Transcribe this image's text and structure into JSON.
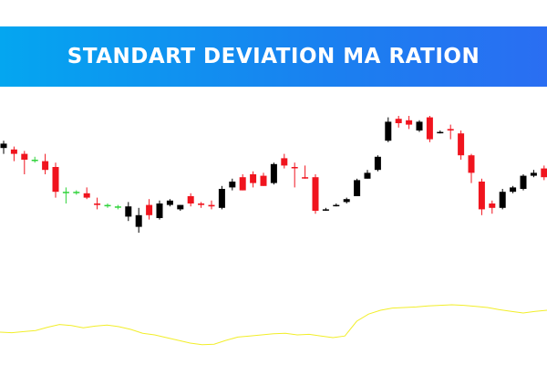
{
  "banner": {
    "title": "STANDART DEVIATION MA RATION"
  },
  "colors": {
    "banner_start": "#04a6f0",
    "banner_end": "#2a6ef2",
    "bull": "#000000",
    "bear": "#f0141e",
    "doji": "#2fd33a",
    "indicator": "#f2ee2a"
  },
  "chart_data": {
    "type": "candlestick",
    "title": "STANDART DEVIATION MA RATION",
    "grid": false,
    "legend": "none",
    "price_range": [
      0,
      100
    ],
    "indicator_range": [
      0,
      100
    ],
    "candles": [
      {
        "o": 61,
        "h": 63,
        "l": 54,
        "c": 58,
        "color": "bull"
      },
      {
        "o": 57,
        "h": 59,
        "l": 49,
        "c": 54,
        "color": "bear"
      },
      {
        "o": 54,
        "h": 56,
        "l": 40,
        "c": 50,
        "color": "bear"
      },
      {
        "o": 50,
        "h": 52,
        "l": 48,
        "c": 50,
        "color": "doji"
      },
      {
        "o": 49,
        "h": 54,
        "l": 40,
        "c": 43,
        "color": "bear"
      },
      {
        "o": 45,
        "h": 48,
        "l": 24,
        "c": 28,
        "color": "bear"
      },
      {
        "o": 28,
        "h": 31,
        "l": 20,
        "c": 28,
        "color": "doji"
      },
      {
        "o": 28,
        "h": 29,
        "l": 26,
        "c": 28,
        "color": "doji"
      },
      {
        "o": 27,
        "h": 31,
        "l": 23,
        "c": 24,
        "color": "bear"
      },
      {
        "o": 20,
        "h": 24,
        "l": 16,
        "c": 19,
        "color": "bear"
      },
      {
        "o": 19,
        "h": 20,
        "l": 17,
        "c": 19,
        "color": "doji"
      },
      {
        "o": 18,
        "h": 19,
        "l": 16,
        "c": 18,
        "color": "doji"
      },
      {
        "o": 11,
        "h": 21,
        "l": 8,
        "c": 18,
        "color": "bull"
      },
      {
        "o": 4,
        "h": 17,
        "l": 0,
        "c": 12,
        "color": "bull"
      },
      {
        "o": 19,
        "h": 23,
        "l": 9,
        "c": 12,
        "color": "bear"
      },
      {
        "o": 10,
        "h": 22,
        "l": 9,
        "c": 20,
        "color": "bull"
      },
      {
        "o": 19,
        "h": 23,
        "l": 18,
        "c": 22,
        "color": "bull"
      },
      {
        "o": 16,
        "h": 19,
        "l": 15,
        "c": 19,
        "color": "bull"
      },
      {
        "o": 25,
        "h": 27,
        "l": 18,
        "c": 20,
        "color": "bear"
      },
      {
        "o": 19,
        "h": 21,
        "l": 17,
        "c": 20,
        "color": "bear"
      },
      {
        "o": 19,
        "h": 22,
        "l": 16,
        "c": 18,
        "color": "bear"
      },
      {
        "o": 17,
        "h": 32,
        "l": 16,
        "c": 30,
        "color": "bull"
      },
      {
        "o": 35,
        "h": 37,
        "l": 29,
        "c": 31,
        "color": "bull"
      },
      {
        "o": 38,
        "h": 40,
        "l": 29,
        "c": 29,
        "color": "bear"
      },
      {
        "o": 40,
        "h": 42,
        "l": 31,
        "c": 34,
        "color": "bear"
      },
      {
        "o": 39,
        "h": 41,
        "l": 32,
        "c": 32,
        "color": "bear"
      },
      {
        "o": 34,
        "h": 48,
        "l": 33,
        "c": 47,
        "color": "bull"
      },
      {
        "o": 51,
        "h": 54,
        "l": 44,
        "c": 46,
        "color": "bear"
      },
      {
        "o": 45,
        "h": 48,
        "l": 31,
        "c": 45,
        "color": "bear"
      },
      {
        "o": 38,
        "h": 46,
        "l": 37,
        "c": 38,
        "color": "bear"
      },
      {
        "o": 38,
        "h": 40,
        "l": 13,
        "c": 15,
        "color": "bear"
      },
      {
        "o": 16,
        "h": 17,
        "l": 15,
        "c": 16,
        "color": "bull"
      },
      {
        "o": 19,
        "h": 20,
        "l": 18,
        "c": 19,
        "color": "bull"
      },
      {
        "o": 21,
        "h": 24,
        "l": 20,
        "c": 23,
        "color": "bull"
      },
      {
        "o": 25,
        "h": 37,
        "l": 25,
        "c": 36,
        "color": "bull"
      },
      {
        "o": 37,
        "h": 43,
        "l": 37,
        "c": 41,
        "color": "bull"
      },
      {
        "o": 43,
        "h": 53,
        "l": 42,
        "c": 52,
        "color": "bull"
      },
      {
        "o": 63,
        "h": 79,
        "l": 62,
        "c": 76,
        "color": "bull"
      },
      {
        "o": 78,
        "h": 80,
        "l": 72,
        "c": 75,
        "color": "bear"
      },
      {
        "o": 77,
        "h": 80,
        "l": 71,
        "c": 74,
        "color": "bear"
      },
      {
        "o": 70,
        "h": 77,
        "l": 69,
        "c": 76,
        "color": "bull"
      },
      {
        "o": 79,
        "h": 80,
        "l": 62,
        "c": 64,
        "color": "bear"
      },
      {
        "o": 69,
        "h": 70,
        "l": 68,
        "c": 69,
        "color": "bull"
      },
      {
        "o": 71,
        "h": 74,
        "l": 64,
        "c": 70,
        "color": "bear"
      },
      {
        "o": 68,
        "h": 70,
        "l": 50,
        "c": 53,
        "color": "bear"
      },
      {
        "o": 53,
        "h": 54,
        "l": 34,
        "c": 41,
        "color": "bear"
      },
      {
        "o": 35,
        "h": 37,
        "l": 12,
        "c": 16,
        "color": "bear"
      },
      {
        "o": 20,
        "h": 22,
        "l": 13,
        "c": 17,
        "color": "bear"
      },
      {
        "o": 17,
        "h": 30,
        "l": 16,
        "c": 28,
        "color": "bull"
      },
      {
        "o": 28,
        "h": 32,
        "l": 27,
        "c": 31,
        "color": "bull"
      },
      {
        "o": 30,
        "h": 40,
        "l": 29,
        "c": 39,
        "color": "bull"
      },
      {
        "o": 39,
        "h": 43,
        "l": 38,
        "c": 41,
        "color": "bull"
      },
      {
        "o": 44,
        "h": 46,
        "l": 36,
        "c": 38,
        "color": "bear"
      }
    ],
    "indicator": [
      35,
      34,
      36,
      38,
      44,
      49,
      47,
      43,
      46,
      48,
      45,
      40,
      33,
      30,
      25,
      20,
      15,
      12,
      13,
      20,
      26,
      28,
      30,
      32,
      33,
      30,
      31,
      28,
      25,
      28,
      55,
      68,
      75,
      79,
      80,
      81,
      83,
      84,
      85,
      84,
      82,
      80,
      76,
      73,
      70,
      73,
      75
    ]
  }
}
